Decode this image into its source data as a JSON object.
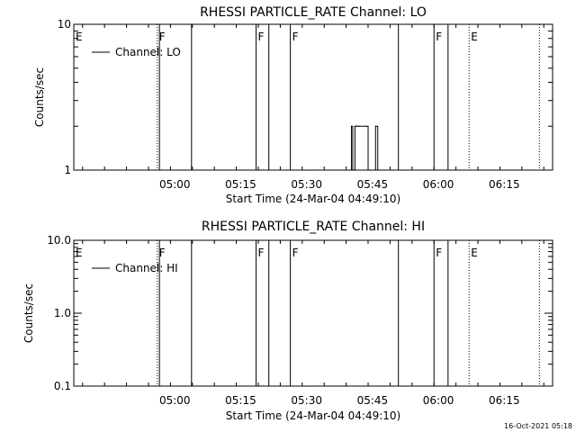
{
  "chart_data": [
    {
      "type": "line",
      "title": "RHESSI PARTICLE_RATE Channel: LO",
      "xlabel": "Start Time (24-Mar-04 04:49:10)",
      "ylabel": "Counts/sec",
      "yscale": "log",
      "ylim": [
        1,
        10
      ],
      "xlim_minutes": [
        -12.0,
        97.0
      ],
      "x_tick_labels": [
        "05:00",
        "05:15",
        "05:30",
        "05:45",
        "06:00",
        "06:15"
      ],
      "x_tick_minutes": [
        11,
        26,
        41,
        56,
        71,
        86
      ],
      "y_tick_labels": [
        "1",
        "10"
      ],
      "y_tick_values": [
        1,
        10
      ],
      "legend": "top-left",
      "series": [
        {
          "name": "Channel: LO",
          "x_minutes": [
            50.8,
            51.2,
            51.5,
            51.8,
            52.0,
            52.3,
            52.6,
            53.0,
            54.6,
            55.0,
            55.4,
            55.8,
            56.3,
            56.7,
            57.2,
            57.6
          ],
          "values": [
            1,
            2,
            1,
            1,
            2,
            2,
            2,
            2,
            2,
            1,
            1,
            1,
            1,
            2,
            1,
            1
          ]
        }
      ],
      "flag_markers": [
        {
          "label": "E",
          "minute": -12.0,
          "style": "solid"
        },
        {
          "label": "F",
          "minute": 7.0,
          "style": "dotted"
        },
        {
          "label": "F",
          "minute": 29.5,
          "style": "solid"
        },
        {
          "label": "F",
          "minute": 37.3,
          "style": "solid"
        },
        {
          "label": "F",
          "minute": 70.0,
          "style": "solid"
        },
        {
          "label": "E",
          "minute": 78.0,
          "style": "dotted"
        }
      ],
      "extra_lines": [
        {
          "minute": 7.5,
          "style": "solid"
        },
        {
          "minute": 14.8,
          "style": "solid"
        },
        {
          "minute": 32.4,
          "style": "solid"
        },
        {
          "minute": 61.9,
          "style": "solid"
        },
        {
          "minute": 73.2,
          "style": "solid"
        },
        {
          "minute": 94.0,
          "style": "dotted"
        }
      ]
    },
    {
      "type": "line",
      "title": "RHESSI PARTICLE_RATE Channel: HI",
      "xlabel": "Start Time (24-Mar-04 04:49:10)",
      "ylabel": "Counts/sec",
      "yscale": "log",
      "ylim": [
        0.1,
        10
      ],
      "xlim_minutes": [
        -12.0,
        97.0
      ],
      "x_tick_labels": [
        "05:00",
        "05:15",
        "05:30",
        "05:45",
        "06:00",
        "06:15"
      ],
      "x_tick_minutes": [
        11,
        26,
        41,
        56,
        71,
        86
      ],
      "y_tick_labels": [
        "0.1",
        "1.0",
        "10.0"
      ],
      "y_tick_values": [
        0.1,
        1,
        10
      ],
      "legend": "top-left",
      "series": [
        {
          "name": "Channel: HI",
          "x_minutes": [],
          "values": []
        }
      ],
      "flag_markers": [
        {
          "label": "E",
          "minute": -12.0,
          "style": "solid"
        },
        {
          "label": "F",
          "minute": 7.0,
          "style": "dotted"
        },
        {
          "label": "F",
          "minute": 29.5,
          "style": "solid"
        },
        {
          "label": "F",
          "minute": 37.3,
          "style": "solid"
        },
        {
          "label": "F",
          "minute": 70.0,
          "style": "solid"
        },
        {
          "label": "E",
          "minute": 78.0,
          "style": "dotted"
        }
      ],
      "extra_lines": [
        {
          "minute": 7.5,
          "style": "solid"
        },
        {
          "minute": 14.8,
          "style": "solid"
        },
        {
          "minute": 32.4,
          "style": "solid"
        },
        {
          "minute": 61.9,
          "style": "solid"
        },
        {
          "minute": 73.2,
          "style": "solid"
        },
        {
          "minute": 94.0,
          "style": "dotted"
        }
      ]
    }
  ],
  "footer": {
    "timestamp": "16-Oct-2021 05:18"
  }
}
